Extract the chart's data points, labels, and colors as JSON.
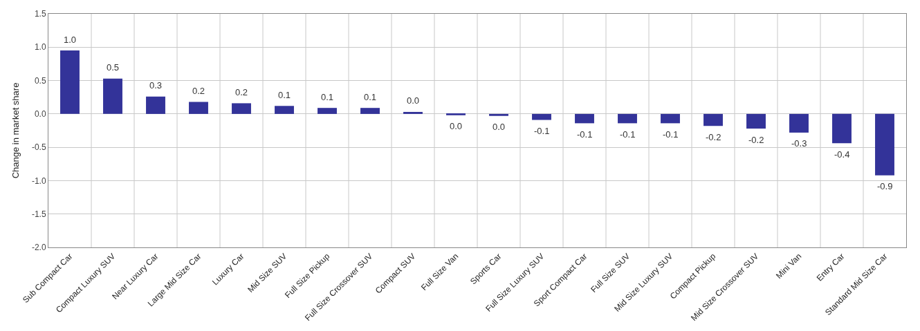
{
  "chart_data": {
    "type": "bar",
    "ylabel": "Change in market share",
    "categories": [
      "Sub Compact Car",
      "Compact Luxury SUV",
      "Near Luxury Car",
      "Large Mid Size Car",
      "Luxury Car",
      "Mid Size SUV",
      "Full Size Pickup",
      "Full Size Crossover SUV",
      "Compact SUV",
      "Full Size Van",
      "Sports Car",
      "Full Size Luxury SUV",
      "Sport Compact Car",
      "Full Size SUV",
      "Mid Size Luxury SUV",
      "Compact Pickup",
      "Mid Size Crossover SUV",
      "Mini Van",
      "Entry Car",
      "Standard Mid Size Car"
    ],
    "values": [
      0.95,
      0.53,
      0.26,
      0.18,
      0.16,
      0.12,
      0.09,
      0.09,
      0.03,
      -0.02,
      -0.03,
      -0.09,
      -0.14,
      -0.14,
      -0.14,
      -0.18,
      -0.22,
      -0.28,
      -0.44,
      -0.92
    ],
    "value_labels": [
      "1.0",
      "0.5",
      "0.3",
      "0.2",
      "0.2",
      "0.1",
      "0.1",
      "0.1",
      "0.0",
      "0.0",
      "0.0",
      "-0.1",
      "-0.1",
      "-0.1",
      "-0.1",
      "-0.2",
      "-0.2",
      "-0.3",
      "-0.4",
      "-0.9"
    ],
    "color": "#333399",
    "ylim": [
      -2.0,
      1.5
    ],
    "yticks": [
      {
        "value": 1.5,
        "label": "1.5"
      },
      {
        "value": 1.0,
        "label": "1.0"
      },
      {
        "value": 0.5,
        "label": "0.5"
      },
      {
        "value": 0.0,
        "label": "0.0"
      },
      {
        "value": -0.5,
        "label": "-0.5"
      },
      {
        "value": -1.0,
        "label": "-1.0"
      },
      {
        "value": -1.5,
        "label": "-1.5"
      },
      {
        "value": -2.0,
        "label": "-2.0"
      }
    ],
    "grid": true
  }
}
